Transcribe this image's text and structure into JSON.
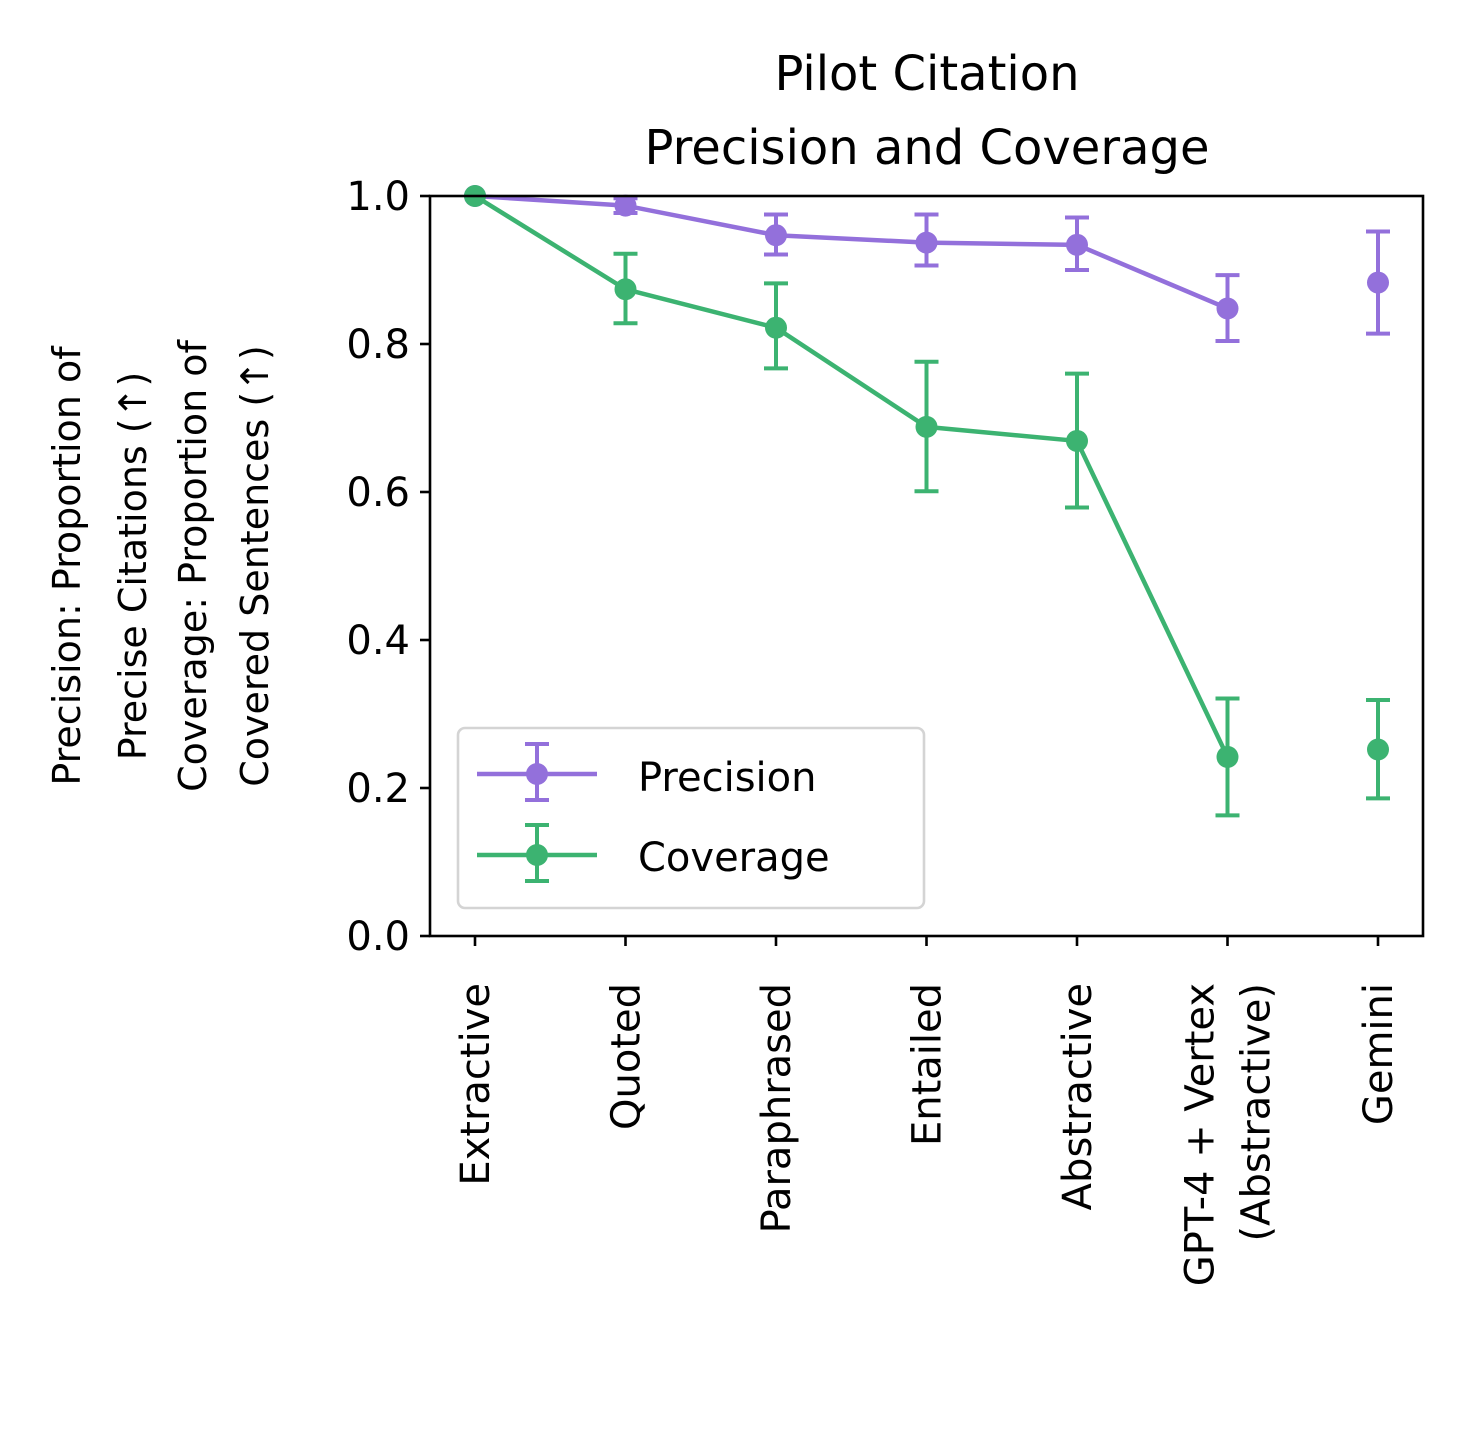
{
  "chart_data": {
    "type": "line",
    "title_lines": [
      "Pilot Citation",
      "Precision and Coverage"
    ],
    "ylabel_lines": [
      "Precision: Proportion of",
      "Precise Citations (↑)",
      "Coverage: Proportion of",
      "Covered Sentences (↑)"
    ],
    "xlabel": "",
    "categories": [
      [
        "Extractive"
      ],
      [
        "Quoted"
      ],
      [
        "Paraphrased"
      ],
      [
        "Entailed"
      ],
      [
        "Abstractive"
      ],
      [
        "GPT-4 + Vertex",
        "(Abstractive)"
      ],
      [
        "Gemini"
      ]
    ],
    "ylim": [
      0,
      1
    ],
    "yticks": [
      "0.0",
      "0.2",
      "0.4",
      "0.6",
      "0.8",
      "1.0"
    ],
    "grid": false,
    "legend_position": "lower-left",
    "series": [
      {
        "name": "Precision",
        "color": "#9370db",
        "values": [
          1.0,
          0.987,
          0.947,
          0.937,
          0.934,
          0.848,
          0.883
        ],
        "err_low": [
          1.0,
          0.977,
          0.921,
          0.906,
          0.9,
          0.804,
          0.814
        ],
        "err_high": [
          1.0,
          0.997,
          0.975,
          0.975,
          0.971,
          0.893,
          0.952
        ],
        "connected_through_index": 5
      },
      {
        "name": "Coverage",
        "color": "#3cb371",
        "values": [
          1.0,
          0.874,
          0.822,
          0.688,
          0.669,
          0.242,
          0.252
        ],
        "err_low": [
          1.0,
          0.828,
          0.767,
          0.601,
          0.579,
          0.163,
          0.186
        ],
        "err_high": [
          1.0,
          0.922,
          0.882,
          0.776,
          0.76,
          0.321,
          0.319
        ],
        "connected_through_index": 5
      }
    ]
  }
}
